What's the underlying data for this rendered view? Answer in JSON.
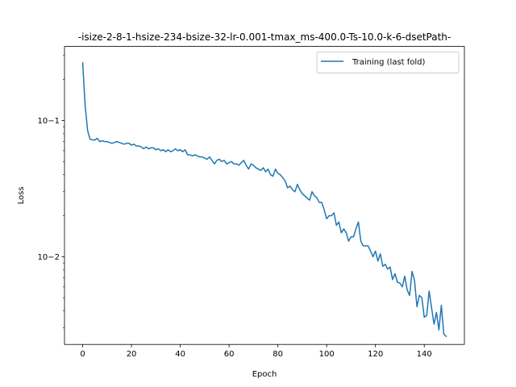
{
  "chart_data": {
    "type": "line",
    "title": "-isize-2-8-1-hsize-234-bsize-32-lr-0.001-tmax_ms-400.0-Ts-10.0-k-6-dsetPath-",
    "xlabel": "Epoch",
    "ylabel": "Loss",
    "yscale": "log",
    "xlim": [
      -7.45,
      156.45
    ],
    "ylim": [
      0.00227,
      0.3498
    ],
    "grid": false,
    "legend_position": "upper right",
    "x_ticks": [
      0,
      20,
      40,
      60,
      80,
      100,
      120,
      140
    ],
    "x_tick_labels": [
      "0",
      "20",
      "40",
      "60",
      "80",
      "100",
      "120",
      "140"
    ],
    "y_ticks": [
      0.01,
      0.1
    ],
    "y_tick_labels": [
      "10−2",
      "10−1"
    ],
    "series": [
      {
        "name": "Training (last fold)",
        "color": "#1f77b4",
        "x_start": 0,
        "x_step": 1,
        "values": [
          0.265,
          0.13,
          0.085,
          0.073,
          0.072,
          0.072,
          0.074,
          0.07,
          0.071,
          0.07,
          0.07,
          0.069,
          0.068,
          0.069,
          0.07,
          0.069,
          0.068,
          0.067,
          0.068,
          0.068,
          0.066,
          0.067,
          0.065,
          0.065,
          0.064,
          0.062,
          0.064,
          0.062,
          0.063,
          0.063,
          0.061,
          0.062,
          0.06,
          0.061,
          0.059,
          0.061,
          0.059,
          0.06,
          0.062,
          0.06,
          0.061,
          0.059,
          0.061,
          0.056,
          0.056,
          0.055,
          0.056,
          0.055,
          0.054,
          0.054,
          0.053,
          0.052,
          0.054,
          0.051,
          0.048,
          0.051,
          0.052,
          0.05,
          0.051,
          0.048,
          0.049,
          0.05,
          0.048,
          0.048,
          0.047,
          0.049,
          0.051,
          0.047,
          0.044,
          0.048,
          0.047,
          0.045,
          0.044,
          0.043,
          0.045,
          0.042,
          0.044,
          0.04,
          0.039,
          0.044,
          0.041,
          0.04,
          0.038,
          0.036,
          0.032,
          0.033,
          0.031,
          0.03,
          0.034,
          0.031,
          0.029,
          0.028,
          0.027,
          0.026,
          0.03,
          0.028,
          0.027,
          0.025,
          0.025,
          0.022,
          0.019,
          0.02,
          0.02,
          0.021,
          0.017,
          0.018,
          0.015,
          0.016,
          0.015,
          0.013,
          0.014,
          0.014,
          0.016,
          0.018,
          0.013,
          0.012,
          0.012,
          0.012,
          0.011,
          0.01,
          0.011,
          0.0093,
          0.0105,
          0.0085,
          0.0088,
          0.0081,
          0.0084,
          0.0068,
          0.0075,
          0.0065,
          0.0064,
          0.006,
          0.0072,
          0.0057,
          0.0052,
          0.0078,
          0.0067,
          0.0043,
          0.0052,
          0.005,
          0.0036,
          0.0037,
          0.0056,
          0.0042,
          0.0032,
          0.0039,
          0.0029,
          0.0044,
          0.0027,
          0.0026
        ]
      }
    ]
  }
}
